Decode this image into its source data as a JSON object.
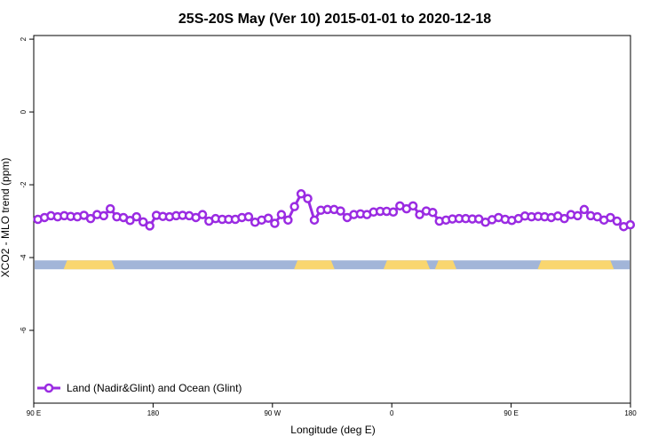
{
  "chart_data": {
    "type": "line",
    "title": "25S-20S May (Ver 10)   2015-01-01 to 2020-12-18",
    "xlabel": "Longitude (deg E)",
    "ylabel": "XCO2 - MLO trend (ppm)",
    "xlim": [
      90,
      450
    ],
    "ylim": [
      -8,
      2.1
    ],
    "xticks": [
      {
        "value": 90,
        "label": "90 E"
      },
      {
        "value": 162,
        "label": "180"
      },
      {
        "value": 234,
        "label": "90 W"
      },
      {
        "value": 306,
        "label": "0"
      },
      {
        "value": 378,
        "label": "90 E"
      },
      {
        "value": 450,
        "label": "180"
      }
    ],
    "yticks": [
      {
        "value": 2,
        "label": "2"
      },
      {
        "value": 0,
        "label": "0"
      },
      {
        "value": -2,
        "label": "-2"
      },
      {
        "value": -4,
        "label": "-4"
      },
      {
        "value": -6,
        "label": "-6"
      }
    ],
    "grid": false,
    "series": [
      {
        "name": "Land (Nadir&Glint) and Ocean (Glint)",
        "color": "#9a2be2",
        "x": [
          92.5,
          96.5,
          100.4,
          104.4,
          108.4,
          112.3,
          116.3,
          120.3,
          124.3,
          128.2,
          132.2,
          136.2,
          140.1,
          144.1,
          148.1,
          152.0,
          156.0,
          160.0,
          164.0,
          167.9,
          171.9,
          175.9,
          179.8,
          183.8,
          187.8,
          191.8,
          195.7,
          199.7,
          203.7,
          207.6,
          211.6,
          215.6,
          219.6,
          223.5,
          227.5,
          231.5,
          235.4,
          239.4,
          243.4,
          247.3,
          251.3,
          255.3,
          259.3,
          263.2,
          267.2,
          271.2,
          275.1,
          279.1,
          283.1,
          287.1,
          291.0,
          295.0,
          299.0,
          302.9,
          306.9,
          310.9,
          314.9,
          318.8,
          322.8,
          326.8,
          330.7,
          334.7,
          338.7,
          342.6,
          346.6,
          350.6,
          354.6,
          358.5,
          362.5,
          366.5,
          370.4,
          374.4,
          378.4,
          382.4,
          386.3,
          390.3,
          394.3,
          398.2,
          402.2,
          406.2,
          410.1,
          414.1,
          418.1,
          422.1,
          426.0,
          430.0,
          434.0,
          437.9,
          441.9,
          445.9,
          449.9
        ],
        "y": [
          -2.95,
          -2.9,
          -2.85,
          -2.88,
          -2.85,
          -2.87,
          -2.88,
          -2.84,
          -2.93,
          -2.82,
          -2.85,
          -2.66,
          -2.88,
          -2.9,
          -2.98,
          -2.88,
          -3.02,
          -3.13,
          -2.84,
          -2.87,
          -2.88,
          -2.85,
          -2.84,
          -2.85,
          -2.9,
          -2.82,
          -3.0,
          -2.93,
          -2.95,
          -2.95,
          -2.95,
          -2.9,
          -2.88,
          -3.03,
          -2.97,
          -2.92,
          -3.06,
          -2.82,
          -2.97,
          -2.6,
          -2.25,
          -2.38,
          -2.97,
          -2.7,
          -2.68,
          -2.68,
          -2.72,
          -2.9,
          -2.82,
          -2.8,
          -2.82,
          -2.75,
          -2.73,
          -2.73,
          -2.75,
          -2.58,
          -2.66,
          -2.58,
          -2.82,
          -2.72,
          -2.76,
          -3.0,
          -2.97,
          -2.94,
          -2.93,
          -2.93,
          -2.94,
          -2.94,
          -3.03,
          -2.96,
          -2.9,
          -2.95,
          -2.98,
          -2.93,
          -2.86,
          -2.88,
          -2.87,
          -2.88,
          -2.9,
          -2.86,
          -2.93,
          -2.82,
          -2.85,
          -2.68,
          -2.85,
          -2.88,
          -2.97,
          -2.9,
          -3.0,
          -3.15,
          -3.1
        ]
      }
    ],
    "legend": {
      "position": "bottom-left"
    }
  },
  "land_mask": {
    "y_value": -4.2,
    "ocean_color": "#a2b5d8",
    "land_color": "#f9d66f",
    "land_segments": [
      [
        108.0,
        139.0
      ],
      [
        247.0,
        271.5
      ],
      [
        301.0,
        329.0
      ],
      [
        332.0,
        345.0
      ],
      [
        394.0,
        440.0
      ]
    ]
  }
}
